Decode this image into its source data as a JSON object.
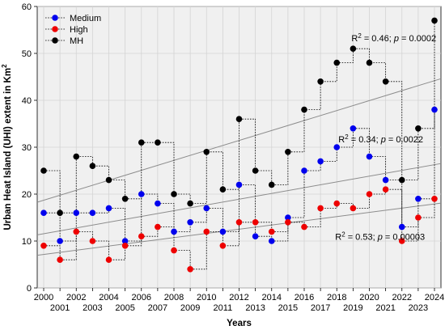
{
  "chart_data": {
    "type": "scatter",
    "xlabel": "Years",
    "ylabel": "Urban Heat Island (UHI) extent in Km",
    "ylabel_sup": "2",
    "x": [
      2000,
      2001,
      2002,
      2003,
      2004,
      2005,
      2006,
      2007,
      2008,
      2009,
      2010,
      2011,
      2012,
      2013,
      2014,
      2015,
      2016,
      2017,
      2018,
      2019,
      2020,
      2021,
      2022,
      2023,
      2024
    ],
    "xlim": [
      2000,
      2024
    ],
    "ylim": [
      0,
      60
    ],
    "yticks": [
      0,
      10,
      20,
      30,
      40,
      50,
      60
    ],
    "grid": true,
    "legend_position": "top-left",
    "series": [
      {
        "name": "Medium",
        "color": "#0000ee",
        "values": [
          16,
          10,
          16,
          16,
          17,
          10,
          20,
          18,
          12,
          14,
          17,
          12,
          22,
          11,
          10,
          15,
          25,
          27,
          30,
          34,
          28,
          23,
          13,
          19,
          38
        ]
      },
      {
        "name": "High",
        "color": "#ee0000",
        "values": [
          9,
          6,
          12,
          10,
          6,
          9,
          11,
          13,
          8,
          4,
          12,
          9,
          14,
          14,
          12,
          14,
          13,
          17,
          18,
          17,
          20,
          21,
          10,
          15,
          19
        ]
      },
      {
        "name": "MH",
        "color": "#000000",
        "values": [
          25,
          16,
          28,
          26,
          23,
          19,
          31,
          31,
          20,
          18,
          29,
          21,
          36,
          25,
          22,
          29,
          38,
          44,
          48,
          51,
          48,
          44,
          23,
          34,
          57
        ]
      }
    ],
    "annotations": [
      {
        "r2": "0.46",
        "p": "0.0002",
        "x": 2018.9,
        "y": 52.6
      },
      {
        "r2": "0.34",
        "p": "0.0022",
        "x": 2018.1,
        "y": 31.0
      },
      {
        "r2": "0.53",
        "p": "0.00003",
        "x": 2017.9,
        "y": 10.3
      }
    ]
  }
}
